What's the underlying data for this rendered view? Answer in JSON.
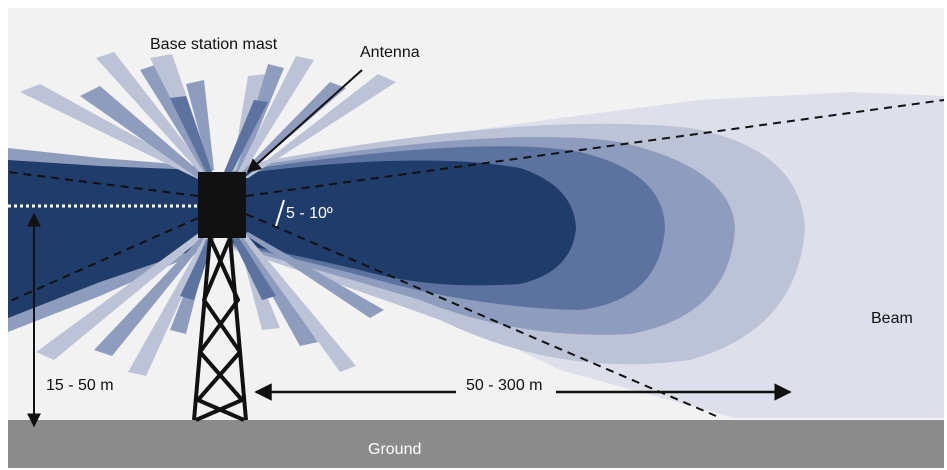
{
  "labels": {
    "mast": "Base station mast",
    "antenna": "Antenna",
    "angle": "5 - 10º",
    "height": "15 - 50 m",
    "distance": "50 - 300 m",
    "beam": "Beam",
    "ground": "Ground"
  },
  "colors": {
    "background": "#ffffff",
    "sky": "#f2f2f3",
    "beam_level_1": "#dde0eb",
    "beam_level_2": "#bcc3d6",
    "beam_level_3": "#8e9cbd",
    "beam_level_4": "#5c73a0",
    "beam_core": "#1f3c6b",
    "ground": "#8b8b8b",
    "mast": "#111111"
  }
}
